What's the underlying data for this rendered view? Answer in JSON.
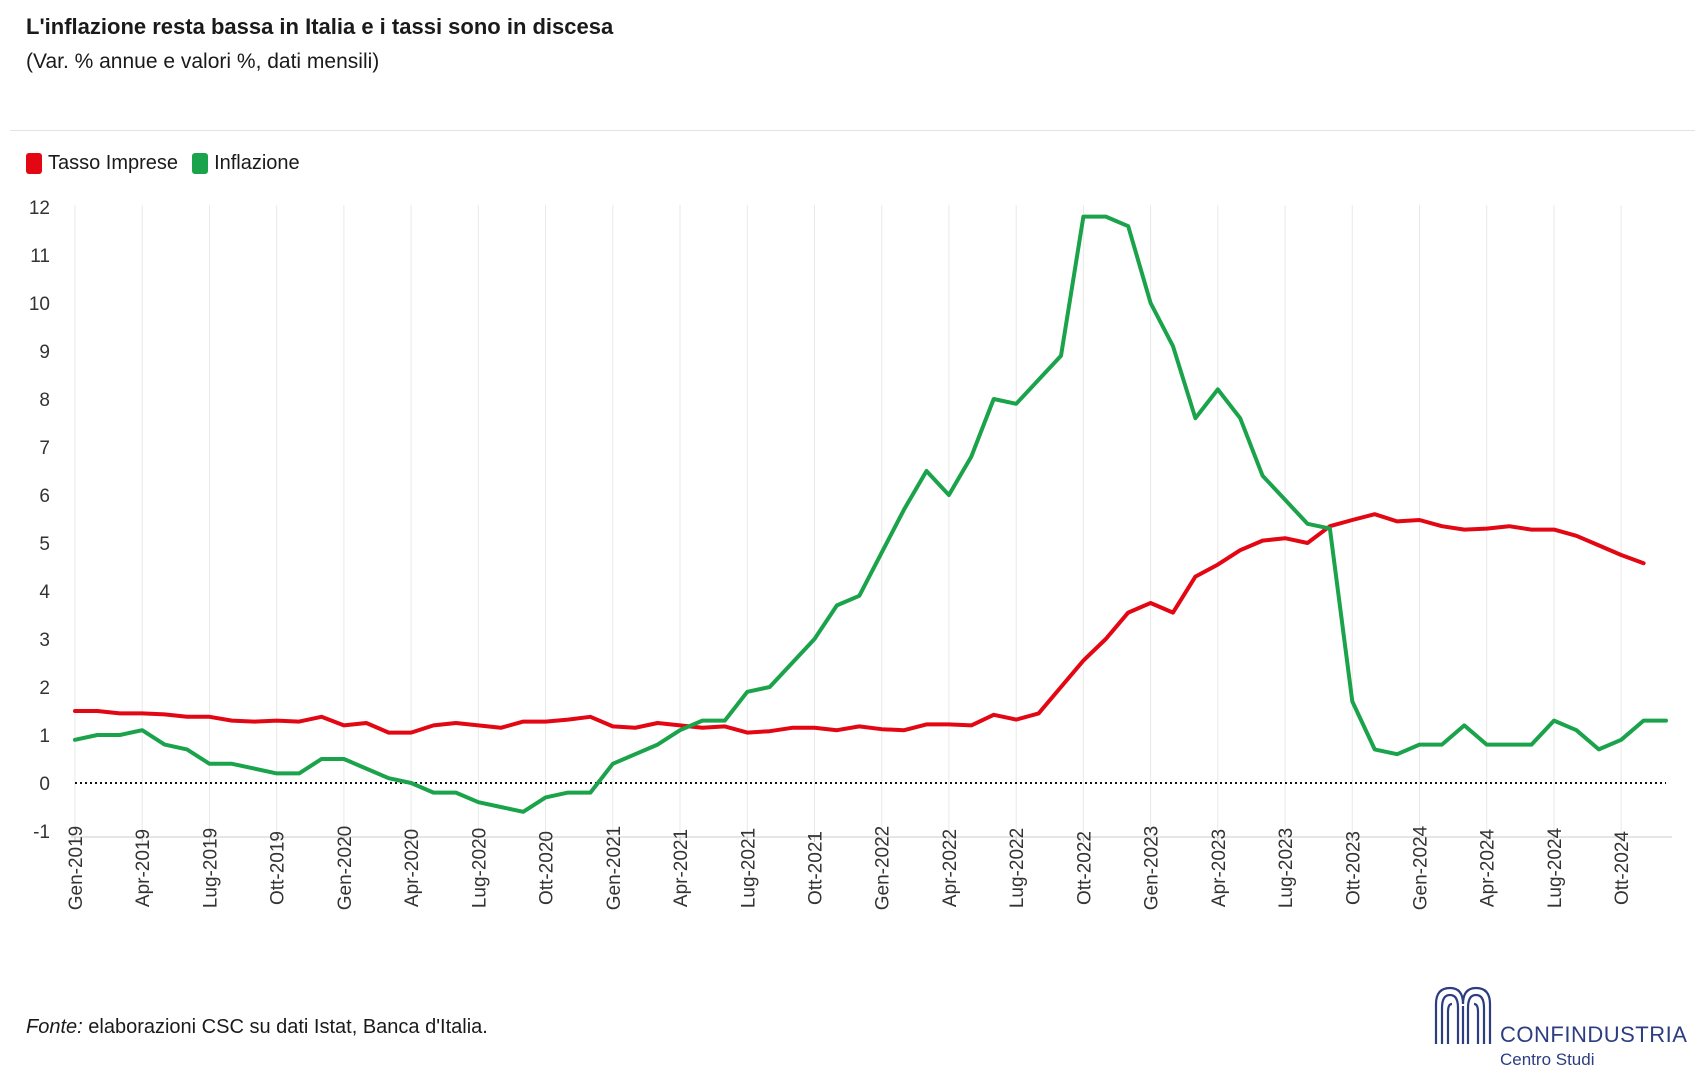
{
  "header": {
    "title": "L'inflazione resta bassa in Italia e i tassi sono in discesa",
    "subtitle": "(Var. % annue e valori %, dati mensili)"
  },
  "footer": {
    "source_label": "Fonte:",
    "source_text": " elaborazioni CSC su dati Istat, Banca d'Italia."
  },
  "logo": {
    "name": "CONFINDUSTRIA",
    "sub": "Centro Studi"
  },
  "chart_data": {
    "type": "line",
    "title": "L'inflazione resta bassa in Italia e i tassi sono in discesa",
    "subtitle": "(Var. % annue e valori %, dati mensili)",
    "legend_position": "top-left",
    "grid": "vertical",
    "ylim": [
      -1,
      12
    ],
    "yticks": [
      -1,
      0,
      1,
      2,
      3,
      4,
      5,
      6,
      7,
      8,
      9,
      10,
      11,
      12
    ],
    "x": [
      "Gen-2019",
      "Feb-2019",
      "Mar-2019",
      "Apr-2019",
      "Mag-2019",
      "Giu-2019",
      "Lug-2019",
      "Ago-2019",
      "Set-2019",
      "Ott-2019",
      "Nov-2019",
      "Dic-2019",
      "Gen-2020",
      "Feb-2020",
      "Mar-2020",
      "Apr-2020",
      "Mag-2020",
      "Giu-2020",
      "Lug-2020",
      "Ago-2020",
      "Set-2020",
      "Ott-2020",
      "Nov-2020",
      "Dic-2020",
      "Gen-2021",
      "Feb-2021",
      "Mar-2021",
      "Apr-2021",
      "Mag-2021",
      "Giu-2021",
      "Lug-2021",
      "Ago-2021",
      "Set-2021",
      "Ott-2021",
      "Nov-2021",
      "Dic-2021",
      "Gen-2022",
      "Feb-2022",
      "Mar-2022",
      "Apr-2022",
      "Mag-2022",
      "Giu-2022",
      "Lug-2022",
      "Ago-2022",
      "Set-2022",
      "Ott-2022",
      "Nov-2022",
      "Dic-2022",
      "Gen-2023",
      "Feb-2023",
      "Mar-2023",
      "Apr-2023",
      "Mag-2023",
      "Giu-2023",
      "Lug-2023",
      "Ago-2023",
      "Set-2023",
      "Ott-2023",
      "Nov-2023",
      "Dic-2023",
      "Gen-2024",
      "Feb-2024",
      "Mar-2024",
      "Apr-2024",
      "Mag-2024",
      "Giu-2024",
      "Lug-2024",
      "Ago-2024",
      "Set-2024",
      "Ott-2024",
      "Nov-2024",
      "Dic-2024"
    ],
    "xtick_labels": [
      "Gen-2019",
      "Apr-2019",
      "Lug-2019",
      "Ott-2019",
      "Gen-2020",
      "Apr-2020",
      "Lug-2020",
      "Ott-2020",
      "Gen-2021",
      "Apr-2021",
      "Lug-2021",
      "Ott-2021",
      "Gen-2022",
      "Apr-2022",
      "Lug-2022",
      "Ott-2022",
      "Gen-2023",
      "Apr-2023",
      "Lug-2023",
      "Ott-2023",
      "Gen-2024",
      "Apr-2024",
      "Lug-2024",
      "Ott-2024"
    ],
    "reference_line": {
      "y": 0,
      "style": "dotted"
    },
    "series": [
      {
        "name": "Tasso Imprese",
        "color": "#e30613",
        "values": [
          1.5,
          1.5,
          1.45,
          1.45,
          1.43,
          1.38,
          1.38,
          1.3,
          1.28,
          1.3,
          1.28,
          1.38,
          1.2,
          1.25,
          1.05,
          1.05,
          1.2,
          1.25,
          1.2,
          1.15,
          1.28,
          1.28,
          1.32,
          1.38,
          1.18,
          1.15,
          1.25,
          1.2,
          1.15,
          1.18,
          1.05,
          1.08,
          1.15,
          1.15,
          1.1,
          1.18,
          1.12,
          1.1,
          1.22,
          1.22,
          1.2,
          1.42,
          1.32,
          1.45,
          2.0,
          2.55,
          3.0,
          3.55,
          3.75,
          3.55,
          4.3,
          4.55,
          4.85,
          5.05,
          5.1,
          5.0,
          5.35,
          5.48,
          5.6,
          5.45,
          5.48,
          5.35,
          5.28,
          5.3,
          5.35,
          5.28,
          5.28,
          5.15,
          4.95,
          4.75,
          4.58,
          null
        ]
      },
      {
        "name": "Inflazione",
        "color": "#1aa34a",
        "values": [
          0.9,
          1.0,
          1.0,
          1.1,
          0.8,
          0.7,
          0.4,
          0.4,
          0.3,
          0.2,
          0.2,
          0.5,
          0.5,
          0.3,
          0.1,
          0.0,
          -0.2,
          -0.2,
          -0.4,
          -0.5,
          -0.6,
          -0.3,
          -0.2,
          -0.2,
          0.4,
          0.6,
          0.8,
          1.1,
          1.3,
          1.3,
          1.9,
          2.0,
          2.5,
          3.0,
          3.7,
          3.9,
          4.8,
          5.7,
          6.5,
          6.0,
          6.8,
          8.0,
          7.9,
          8.4,
          8.9,
          11.8,
          11.8,
          11.6,
          10.0,
          9.1,
          7.6,
          8.2,
          7.6,
          6.4,
          5.9,
          5.4,
          5.3,
          1.7,
          0.7,
          0.6,
          0.8,
          0.8,
          1.2,
          0.8,
          0.8,
          0.8,
          1.3,
          1.1,
          0.7,
          0.9,
          1.3,
          1.3
        ]
      }
    ]
  }
}
